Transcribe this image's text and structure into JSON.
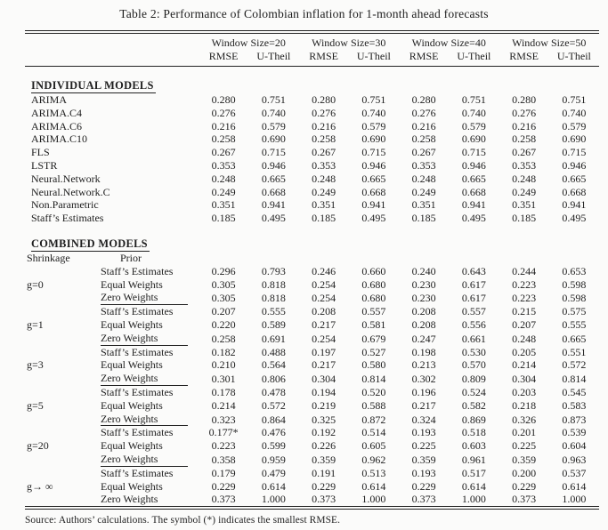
{
  "title": "Table 2: Performance of Colombian inflation for 1-month ahead forecasts",
  "header": {
    "window_groups": [
      "Window Size=20",
      "Window Size=30",
      "Window Size=40",
      "Window Size=50"
    ],
    "metrics": [
      "RMSE",
      "U-Theil"
    ]
  },
  "individual_section": {
    "heading": "INDIVIDUAL MODELS",
    "rows": [
      {
        "model": "ARIMA",
        "values": [
          "0.280",
          "0.751",
          "0.280",
          "0.751",
          "0.280",
          "0.751",
          "0.280",
          "0.751"
        ]
      },
      {
        "model": "ARIMA.C4",
        "values": [
          "0.276",
          "0.740",
          "0.276",
          "0.740",
          "0.276",
          "0.740",
          "0.276",
          "0.740"
        ]
      },
      {
        "model": "ARIMA.C6",
        "values": [
          "0.216",
          "0.579",
          "0.216",
          "0.579",
          "0.216",
          "0.579",
          "0.216",
          "0.579"
        ]
      },
      {
        "model": "ARIMA.C10",
        "values": [
          "0.258",
          "0.690",
          "0.258",
          "0.690",
          "0.258",
          "0.690",
          "0.258",
          "0.690"
        ]
      },
      {
        "model": "FLS",
        "values": [
          "0.267",
          "0.715",
          "0.267",
          "0.715",
          "0.267",
          "0.715",
          "0.267",
          "0.715"
        ]
      },
      {
        "model": "LSTR",
        "values": [
          "0.353",
          "0.946",
          "0.353",
          "0.946",
          "0.353",
          "0.946",
          "0.353",
          "0.946"
        ]
      },
      {
        "model": "Neural.Network",
        "values": [
          "0.248",
          "0.665",
          "0.248",
          "0.665",
          "0.248",
          "0.665",
          "0.248",
          "0.665"
        ]
      },
      {
        "model": "Neural.Network.C",
        "values": [
          "0.249",
          "0.668",
          "0.249",
          "0.668",
          "0.249",
          "0.668",
          "0.249",
          "0.668"
        ]
      },
      {
        "model": "Non.Parametric",
        "values": [
          "0.351",
          "0.941",
          "0.351",
          "0.941",
          "0.351",
          "0.941",
          "0.351",
          "0.941"
        ]
      },
      {
        "model": "Staff’s Estimates",
        "values": [
          "0.185",
          "0.495",
          "0.185",
          "0.495",
          "0.185",
          "0.495",
          "0.185",
          "0.495"
        ]
      }
    ]
  },
  "combined_section": {
    "heading": "COMBINED MODELS",
    "col1_label": "Shrinkage",
    "col2_label": "Prior",
    "groups": [
      {
        "shrinkage": "g=0",
        "rows": [
          {
            "prior": "Staff’s Estimates",
            "underline": false,
            "values": [
              "0.296",
              "0.793",
              "0.246",
              "0.660",
              "0.240",
              "0.643",
              "0.244",
              "0.653"
            ]
          },
          {
            "prior": "Equal Weights",
            "underline": false,
            "values": [
              "0.305",
              "0.818",
              "0.254",
              "0.680",
              "0.230",
              "0.617",
              "0.223",
              "0.598"
            ]
          },
          {
            "prior": "Zero Weights",
            "underline": true,
            "values": [
              "0.305",
              "0.818",
              "0.254",
              "0.680",
              "0.230",
              "0.617",
              "0.223",
              "0.598"
            ]
          }
        ]
      },
      {
        "shrinkage": "g=1",
        "rows": [
          {
            "prior": "Staff’s Estimates",
            "underline": false,
            "values": [
              "0.207",
              "0.555",
              "0.208",
              "0.557",
              "0.208",
              "0.557",
              "0.215",
              "0.575"
            ]
          },
          {
            "prior": "Equal Weights",
            "underline": false,
            "values": [
              "0.220",
              "0.589",
              "0.217",
              "0.581",
              "0.208",
              "0.556",
              "0.207",
              "0.555"
            ]
          },
          {
            "prior": "Zero Weights",
            "underline": true,
            "values": [
              "0.258",
              "0.691",
              "0.254",
              "0.679",
              "0.247",
              "0.661",
              "0.248",
              "0.665"
            ]
          }
        ]
      },
      {
        "shrinkage": "g=3",
        "rows": [
          {
            "prior": "Staff’s Estimates",
            "underline": false,
            "values": [
              "0.182",
              "0.488",
              "0.197",
              "0.527",
              "0.198",
              "0.530",
              "0.205",
              "0.551"
            ]
          },
          {
            "prior": "Equal Weights",
            "underline": false,
            "values": [
              "0.210",
              "0.564",
              "0.217",
              "0.580",
              "0.213",
              "0.570",
              "0.214",
              "0.572"
            ]
          },
          {
            "prior": "Zero Weights",
            "underline": true,
            "values": [
              "0.301",
              "0.806",
              "0.304",
              "0.814",
              "0.302",
              "0.809",
              "0.304",
              "0.814"
            ]
          }
        ]
      },
      {
        "shrinkage": "g=5",
        "rows": [
          {
            "prior": "Staff’s Estimates",
            "underline": false,
            "values": [
              "0.178",
              "0.478",
              "0.194",
              "0.520",
              "0.196",
              "0.524",
              "0.203",
              "0.545"
            ]
          },
          {
            "prior": "Equal Weights",
            "underline": false,
            "values": [
              "0.214",
              "0.572",
              "0.219",
              "0.588",
              "0.217",
              "0.582",
              "0.218",
              "0.583"
            ]
          },
          {
            "prior": "Zero Weights",
            "underline": true,
            "values": [
              "0.323",
              "0.864",
              "0.325",
              "0.872",
              "0.324",
              "0.869",
              "0.326",
              "0.873"
            ]
          }
        ]
      },
      {
        "shrinkage": "g=20",
        "rows": [
          {
            "prior": "Staff’s Estimates",
            "underline": false,
            "values": [
              "0.177*",
              "0.476",
              "0.192",
              "0.514",
              "0.193",
              "0.518",
              "0.201",
              "0.539"
            ]
          },
          {
            "prior": "Equal Weights",
            "underline": false,
            "values": [
              "0.223",
              "0.599",
              "0.226",
              "0.605",
              "0.225",
              "0.603",
              "0.225",
              "0.604"
            ]
          },
          {
            "prior": "Zero Weights",
            "underline": true,
            "values": [
              "0.358",
              "0.959",
              "0.359",
              "0.962",
              "0.359",
              "0.961",
              "0.359",
              "0.963"
            ]
          }
        ]
      },
      {
        "shrinkage": "g→ ∞",
        "rows": [
          {
            "prior": "Staff’s Estimates",
            "underline": false,
            "values": [
              "0.179",
              "0.479",
              "0.191",
              "0.513",
              "0.193",
              "0.517",
              "0.200",
              "0.537"
            ]
          },
          {
            "prior": "Equal Weights",
            "underline": false,
            "values": [
              "0.229",
              "0.614",
              "0.229",
              "0.614",
              "0.229",
              "0.614",
              "0.229",
              "0.614"
            ]
          },
          {
            "prior": "Zero Weights",
            "underline": false,
            "values": [
              "0.373",
              "1.000",
              "0.373",
              "1.000",
              "0.373",
              "1.000",
              "0.373",
              "1.000"
            ]
          }
        ]
      }
    ]
  },
  "footer": "Source: Authors’ calculations. The symbol (*) indicates the smallest RMSE."
}
